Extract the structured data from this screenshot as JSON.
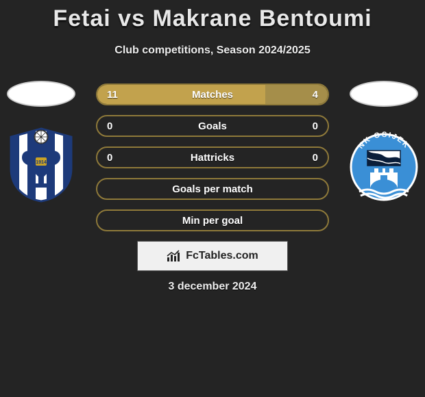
{
  "title": "Fetai vs Makrane Bentoumi",
  "title_color": "#e8e8e8",
  "subtitle": "Club competitions, Season 2024/2025",
  "background_color": "#242424",
  "row_border_color": "#8f7a3a",
  "fill_left_color": "#c2a24d",
  "fill_right_color": "#a58e4a",
  "rows": [
    {
      "label": "Matches",
      "left": "11",
      "right": "4",
      "left_pct": 73,
      "right_pct": 27
    },
    {
      "label": "Goals",
      "left": "0",
      "right": "0",
      "left_pct": 0,
      "right_pct": 0
    },
    {
      "label": "Hattricks",
      "left": "0",
      "right": "0",
      "left_pct": 0,
      "right_pct": 0
    },
    {
      "label": "Goals per match",
      "left": "",
      "right": "",
      "left_pct": 0,
      "right_pct": 0
    },
    {
      "label": "Min per goal",
      "left": "",
      "right": "",
      "left_pct": 0,
      "right_pct": 0
    }
  ],
  "attribution": "FcTables.com",
  "attribution_bg": "#f0f0f0",
  "date": "3 december 2024",
  "left_club": {
    "name": "NK Lokomotiva Zagreb",
    "crest_colors": {
      "primary": "#1d3a7a",
      "secondary": "#ffffff",
      "accent": "#c9a227"
    },
    "year_text": "1914"
  },
  "right_club": {
    "name": "NK Osijek",
    "crest_colors": {
      "primary": "#3a8fd6",
      "secondary": "#ffffff",
      "navy": "#0a1e3a"
    }
  }
}
